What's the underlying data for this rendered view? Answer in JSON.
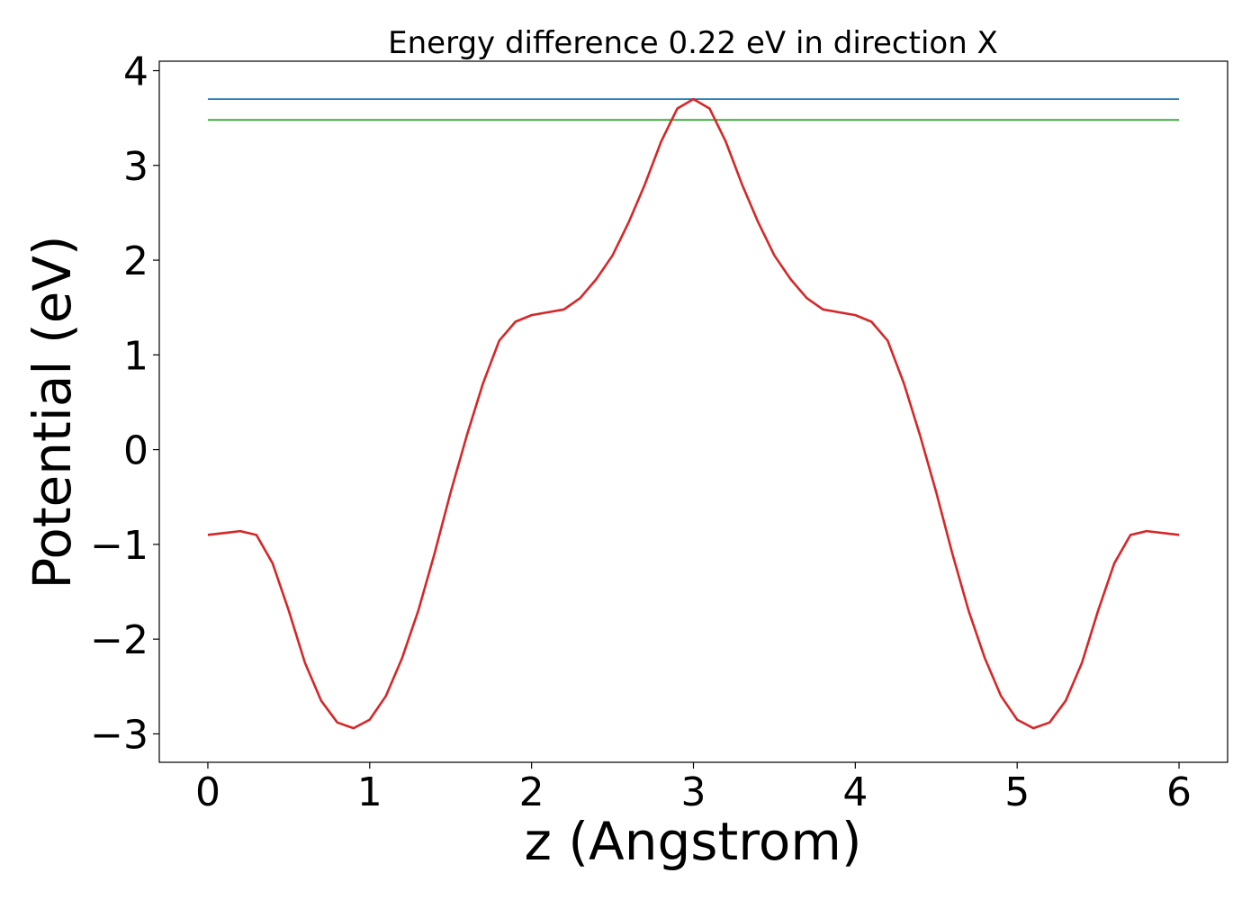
{
  "chart_data": {
    "type": "line",
    "title": "Energy difference 0.22 eV in direction X",
    "xlabel": "z (Angstrom)",
    "ylabel": "Potential (eV)",
    "xlim": [
      -0.3,
      6.3
    ],
    "ylim": [
      -3.3,
      4.1
    ],
    "xticks": [
      0,
      1,
      2,
      3,
      4,
      5,
      6
    ],
    "xtick_labels": [
      "0",
      "1",
      "2",
      "3",
      "4",
      "5",
      "6"
    ],
    "yticks": [
      -3,
      -2,
      -1,
      0,
      1,
      2,
      3,
      4
    ],
    "ytick_labels": [
      "−3",
      "−2",
      "−1",
      "0",
      "1",
      "2",
      "3",
      "4"
    ],
    "grid": false,
    "series": [
      {
        "color": "#d62728",
        "x": [
          0,
          0.2,
          0.3,
          0.4,
          0.5,
          0.6,
          0.7,
          0.8,
          0.9,
          1.0,
          1.1,
          1.2,
          1.3,
          1.4,
          1.5,
          1.6,
          1.7,
          1.8,
          1.9,
          2.0,
          2.1,
          2.2,
          2.3,
          2.4,
          2.5,
          2.6,
          2.7,
          2.8,
          2.9,
          3.0,
          3.1,
          3.2,
          3.3,
          3.4,
          3.5,
          3.6,
          3.7,
          3.8,
          3.9,
          4.0,
          4.1,
          4.2,
          4.3,
          4.4,
          4.5,
          4.6,
          4.7,
          4.8,
          4.9,
          5.0,
          5.1,
          5.2,
          5.3,
          5.4,
          5.5,
          5.6,
          5.7,
          5.8,
          6.0
        ],
        "y": [
          -0.9,
          -0.86,
          -0.9,
          -1.2,
          -1.7,
          -2.25,
          -2.65,
          -2.88,
          -2.94,
          -2.85,
          -2.6,
          -2.2,
          -1.7,
          -1.1,
          -0.45,
          0.15,
          0.7,
          1.15,
          1.35,
          1.42,
          1.45,
          1.48,
          1.6,
          1.8,
          2.05,
          2.4,
          2.8,
          3.25,
          3.6,
          3.7,
          3.6,
          3.25,
          2.8,
          2.4,
          2.05,
          1.8,
          1.6,
          1.48,
          1.45,
          1.42,
          1.35,
          1.15,
          0.7,
          0.15,
          -0.45,
          -1.1,
          -1.7,
          -2.2,
          -2.6,
          -2.85,
          -2.94,
          -2.88,
          -2.65,
          -2.25,
          -1.7,
          -1.2,
          -0.9,
          -0.86,
          -0.9
        ]
      },
      {
        "color": "#1f77b4",
        "x": [
          0,
          6
        ],
        "y": [
          3.7,
          3.7
        ]
      },
      {
        "color": "#2ca02c",
        "x": [
          0,
          6
        ],
        "y": [
          3.48,
          3.48
        ]
      }
    ]
  }
}
